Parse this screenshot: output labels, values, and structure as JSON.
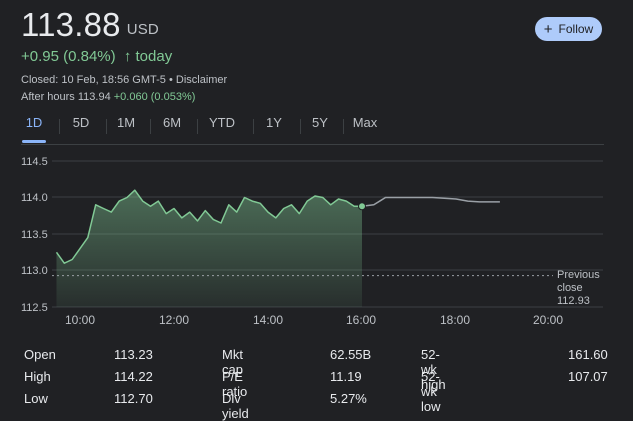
{
  "quote": {
    "price": "113.88",
    "currency": "USD",
    "change": "+0.95 (0.84%)",
    "change_arrow": "↑",
    "change_period": "today",
    "closed_text": "Closed: 10 Feb, 18:56 GMT-5 • Disclaimer",
    "after_hours_label": "After hours 113.94",
    "after_hours_change": "+0.060 (0.053%)"
  },
  "follow_button": {
    "icon": "plus-icon",
    "label": "Follow"
  },
  "range_tabs": [
    "1D",
    "5D",
    "1M",
    "6M",
    "YTD",
    "1Y",
    "5Y",
    "Max"
  ],
  "active_tab": "1D",
  "colors": {
    "positive": "#81c995",
    "accent": "#8ab4f8",
    "button_bg": "#aecbfa",
    "after_hours_line": "#9aa0a6"
  },
  "chart_data": {
    "type": "area",
    "title": "",
    "xlabel": "",
    "ylabel": "",
    "ylim": [
      112.5,
      114.5
    ],
    "y_ticks": [
      "114.5",
      "114.0",
      "113.5",
      "113.0",
      "112.5"
    ],
    "x_tick_labels": [
      "10:00",
      "12:00",
      "14:00",
      "16:00",
      "18:00",
      "20:00"
    ],
    "reference_line": {
      "label_lines": [
        "Previous",
        "close",
        "112.93"
      ],
      "value": 112.93
    },
    "series": [
      {
        "session": "regular",
        "x": [
          "09:30",
          "09:40",
          "09:50",
          "10:00",
          "10:10",
          "10:20",
          "10:30",
          "10:40",
          "10:50",
          "11:00",
          "11:10",
          "11:20",
          "11:30",
          "11:40",
          "11:50",
          "12:00",
          "12:10",
          "12:20",
          "12:30",
          "12:40",
          "12:50",
          "13:00",
          "13:10",
          "13:20",
          "13:30",
          "13:40",
          "13:50",
          "14:00",
          "14:10",
          "14:20",
          "14:30",
          "14:40",
          "14:50",
          "15:00",
          "15:10",
          "15:20",
          "15:30",
          "15:40",
          "15:50",
          "16:00"
        ],
        "y": [
          113.25,
          113.1,
          113.15,
          113.3,
          113.45,
          113.9,
          113.85,
          113.8,
          113.95,
          114.0,
          114.1,
          113.95,
          113.88,
          113.95,
          113.78,
          113.85,
          113.72,
          113.8,
          113.68,
          113.82,
          113.7,
          113.65,
          113.9,
          113.8,
          114.0,
          113.95,
          113.92,
          113.8,
          113.72,
          113.85,
          113.9,
          113.78,
          113.95,
          114.02,
          114.0,
          113.9,
          113.98,
          113.95,
          113.88,
          113.88
        ]
      },
      {
        "session": "after_hours",
        "x": [
          "16:00",
          "16:15",
          "16:30",
          "17:00",
          "17:30",
          "18:00",
          "18:15",
          "18:30",
          "18:56"
        ],
        "y": [
          113.88,
          113.9,
          114.0,
          114.0,
          114.0,
          113.98,
          113.95,
          113.94,
          113.94
        ]
      }
    ]
  },
  "stats": {
    "left": [
      {
        "label": "Open",
        "value": "113.23"
      },
      {
        "label": "High",
        "value": "114.22"
      },
      {
        "label": "Low",
        "value": "112.70"
      }
    ],
    "middle": [
      {
        "label": "Mkt cap",
        "value": "62.55B"
      },
      {
        "label": "P/E ratio",
        "value": "11.19"
      },
      {
        "label": "Div yield",
        "value": "5.27%"
      }
    ],
    "right": [
      {
        "label": "52-wk high",
        "value": "161.60"
      },
      {
        "label": "52-wk low",
        "value": "107.07"
      }
    ]
  }
}
